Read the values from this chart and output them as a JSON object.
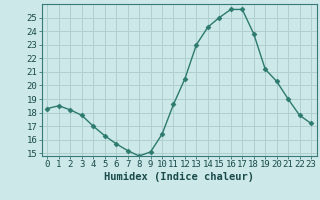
{
  "x": [
    0,
    1,
    2,
    3,
    4,
    5,
    6,
    7,
    8,
    9,
    10,
    11,
    12,
    13,
    14,
    15,
    16,
    17,
    18,
    19,
    20,
    21,
    22,
    23
  ],
  "y": [
    18.3,
    18.5,
    18.2,
    17.8,
    17.0,
    16.3,
    15.7,
    15.2,
    14.8,
    15.1,
    16.4,
    18.6,
    20.5,
    23.0,
    24.3,
    25.0,
    25.6,
    25.6,
    23.8,
    21.2,
    20.3,
    19.0,
    17.8,
    17.2
  ],
  "xlabel": "Humidex (Indice chaleur)",
  "xlim": [
    -0.5,
    23.5
  ],
  "ylim": [
    14.8,
    26.0
  ],
  "yticks": [
    15,
    16,
    17,
    18,
    19,
    20,
    21,
    22,
    23,
    24,
    25
  ],
  "xticks": [
    0,
    1,
    2,
    3,
    4,
    5,
    6,
    7,
    8,
    9,
    10,
    11,
    12,
    13,
    14,
    15,
    16,
    17,
    18,
    19,
    20,
    21,
    22,
    23
  ],
  "line_color": "#2d7a6e",
  "marker": "D",
  "marker_size": 2.5,
  "bg_color": "#cce8e8",
  "grid_color": "#b0d0d0",
  "tick_label_fontsize": 6.5,
  "xlabel_fontsize": 7.5,
  "line_width": 1.0
}
